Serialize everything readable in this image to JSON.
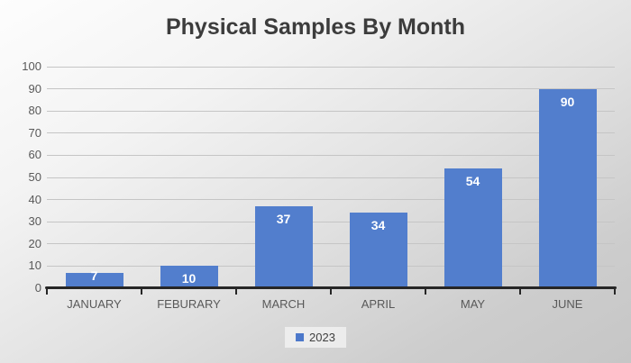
{
  "chart_data": {
    "type": "bar",
    "title": "Physical Samples By Month",
    "categories": [
      "JANUARY",
      "FEBURARY",
      "MARCH",
      "APRIL",
      "MAY",
      "JUNE"
    ],
    "series": [
      {
        "name": "2023",
        "values": [
          7,
          10,
          37,
          34,
          54,
          90
        ]
      }
    ],
    "xlabel": "",
    "ylabel": "",
    "ylim": [
      0,
      100
    ],
    "ytick_step": 10,
    "ytick_labels": [
      "0",
      "10",
      "20",
      "30",
      "40",
      "50",
      "60",
      "70",
      "80",
      "90",
      "100"
    ],
    "grid": true,
    "data_labels": true,
    "legend_position": "bottom",
    "colors": {
      "bar": "#527ECD",
      "legend_swatch": "#4C78CA",
      "title_text": "#3C3C3C",
      "axis_text": "#595959",
      "data_label_text": "#FFFFFF",
      "axis_line": "#262626",
      "gridline": "#C5C5C5",
      "background_top": "#FDFDFD",
      "background_bottom": "#C6C6C6",
      "legend_background": "#F4F4F4"
    }
  }
}
